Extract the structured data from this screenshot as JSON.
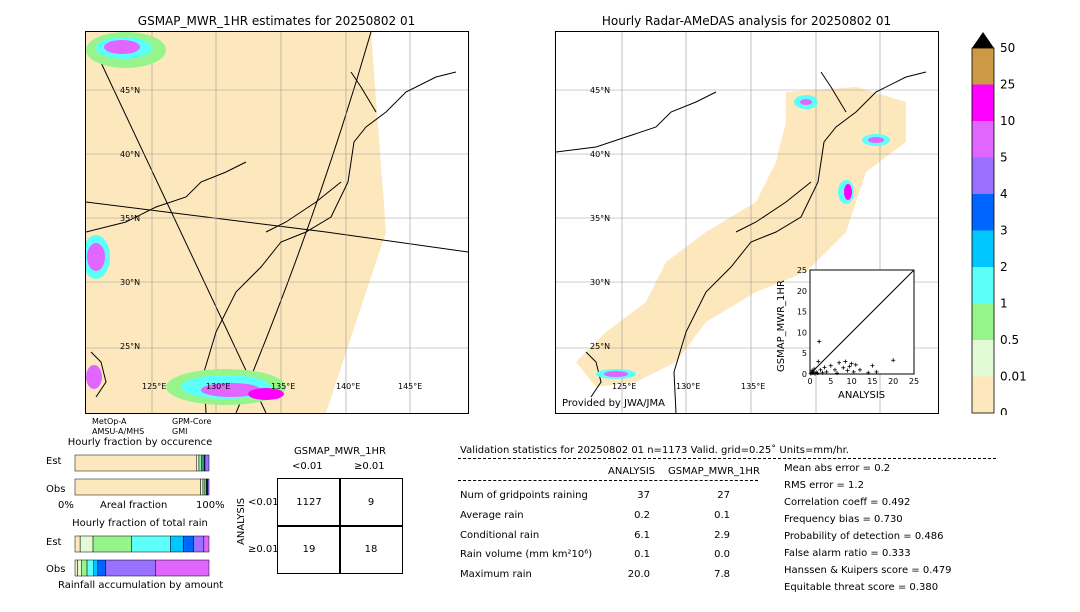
{
  "left_map": {
    "title": "GSMAP_MWR_1HR estimates for 20250802 01",
    "lat_labels": [
      "45°N",
      "40°N",
      "35°N",
      "30°N",
      "25°N"
    ],
    "lon_labels": [
      "125°E",
      "130°E",
      "135°E",
      "140°E",
      "145°E"
    ],
    "sensor_labels": [
      "MetOp-A",
      "AMSU-A/MHS",
      "GPM-Core",
      "GMI"
    ],
    "swath_color": "#fde8bd"
  },
  "right_map": {
    "title": "Hourly Radar-AMeDAS analysis for 20250802 01",
    "lat_labels": [
      "45°N",
      "40°N",
      "35°N",
      "30°N",
      "25°N"
    ],
    "lon_labels": [
      "125°E",
      "130°E",
      "135°E"
    ],
    "credit": "Provided by JWA/JMA"
  },
  "colorbar": {
    "labels": [
      "0",
      "0.01",
      "0.5",
      "1",
      "2",
      "3",
      "4",
      "5",
      "10",
      "25",
      "50"
    ],
    "colors": [
      "#fde8bd",
      "#e2fbd6",
      "#96f58a",
      "#5cfffa",
      "#00c8ff",
      "#0064ff",
      "#9970ff",
      "#e066ff",
      "#ff00ff",
      "#cc9944"
    ]
  },
  "chart_data": [
    {
      "type": "scatter",
      "xlabel": "ANALYSIS",
      "ylabel": "GSMAP_MWR_1HR",
      "xlim": [
        0,
        25
      ],
      "ylim": [
        0,
        25
      ],
      "xticks": [
        "0",
        "5",
        "10",
        "15",
        "20",
        "25"
      ],
      "yticks": [
        "0",
        "5",
        "10",
        "15",
        "20",
        "25"
      ],
      "points": [
        [
          0.2,
          0.1
        ],
        [
          0.4,
          0.3
        ],
        [
          0.5,
          0.8
        ],
        [
          0.7,
          0.2
        ],
        [
          0.9,
          0.5
        ],
        [
          1.0,
          1.2
        ],
        [
          1.2,
          0.1
        ],
        [
          1.5,
          0.4
        ],
        [
          1.8,
          0.2
        ],
        [
          2.0,
          3.0
        ],
        [
          2.2,
          7.8
        ],
        [
          2.5,
          1.0
        ],
        [
          3.0,
          0.3
        ],
        [
          3.5,
          1.6
        ],
        [
          4.0,
          0.5
        ],
        [
          5.0,
          2.0
        ],
        [
          6.0,
          1.0
        ],
        [
          6.5,
          0.2
        ],
        [
          7.0,
          2.7
        ],
        [
          8.0,
          1.5
        ],
        [
          8.5,
          3.0
        ],
        [
          9.0,
          0.8
        ],
        [
          9.5,
          1.8
        ],
        [
          10.0,
          2.5
        ],
        [
          10.5,
          0.5
        ],
        [
          11.0,
          2.2
        ],
        [
          12.0,
          1.0
        ],
        [
          14.0,
          0.3
        ],
        [
          15.0,
          2.0
        ],
        [
          16.0,
          0.5
        ],
        [
          20.0,
          3.3
        ]
      ]
    },
    {
      "type": "bar",
      "title": "Hourly fraction by occurence",
      "categories": [
        "Est",
        "Obs"
      ],
      "xlabel": "Areal fraction",
      "xticks": [
        "0%",
        "100%"
      ],
      "series": [
        {
          "values": [
            0.905,
            0.937
          ]
        },
        {
          "values": [
            0.02,
            0.018
          ]
        },
        {
          "values": [
            0.02,
            0.015
          ]
        },
        {
          "values": [
            0.01,
            0.01
          ]
        },
        {
          "values": [
            0.01,
            0.005
          ]
        },
        {
          "values": [
            0.005,
            0.005
          ]
        },
        {
          "values": [
            0.03,
            0.01
          ]
        }
      ]
    },
    {
      "type": "bar",
      "title": "Hourly fraction of total rain",
      "categories": [
        "Est",
        "Obs"
      ],
      "xlabel": "Rainfall accumulation by amount",
      "series": [
        {
          "values": [
            0.02,
            0.02
          ]
        },
        {
          "values": [
            0.05,
            0.03
          ]
        },
        {
          "values": [
            0.15,
            0.04
          ]
        },
        {
          "values": [
            0.15,
            0.05
          ]
        },
        {
          "values": [
            0.05,
            0.03
          ]
        },
        {
          "values": [
            0.04,
            0.06
          ]
        },
        {
          "values": [
            0.04,
            0.37
          ]
        },
        {
          "values": [
            0.02,
            0.4
          ]
        }
      ]
    }
  ],
  "contingency": {
    "title": "GSMAP_MWR_1HR",
    "col_labels": [
      "<0.01",
      "≥0.01"
    ],
    "row_axis_label": "ANALYSIS",
    "row_labels": [
      "<0.01",
      "≥0.01"
    ],
    "cells": [
      [
        "1127",
        "9"
      ],
      [
        "19",
        "18"
      ]
    ]
  },
  "validation": {
    "header": "Validation statistics for 20250802 01  n=1173 Valid. grid=0.25˚ Units=mm/hr.",
    "col_headers": [
      "ANALYSIS",
      "GSMAP_MWR_1HR"
    ],
    "rows": [
      {
        "label": "Num of gridpoints raining",
        "analysis": "37",
        "gsmap": "27"
      },
      {
        "label": "Average rain",
        "analysis": "0.2",
        "gsmap": "0.1"
      },
      {
        "label": "Conditional rain",
        "analysis": "6.1",
        "gsmap": "2.9"
      },
      {
        "label": "Rain volume (mm km²10⁶)",
        "analysis": "0.1",
        "gsmap": "0.0"
      },
      {
        "label": "Maximum rain",
        "analysis": "20.0",
        "gsmap": "7.8"
      }
    ],
    "scores": [
      "Mean abs error =    0.2",
      "RMS error =    1.2",
      "Correlation coeff =  0.492",
      "Frequency bias =  0.730",
      "Probability of detection =  0.486",
      "False alarm ratio =  0.333",
      "Hanssen & Kuipers score =  0.479",
      "Equitable threat score =  0.380"
    ]
  }
}
